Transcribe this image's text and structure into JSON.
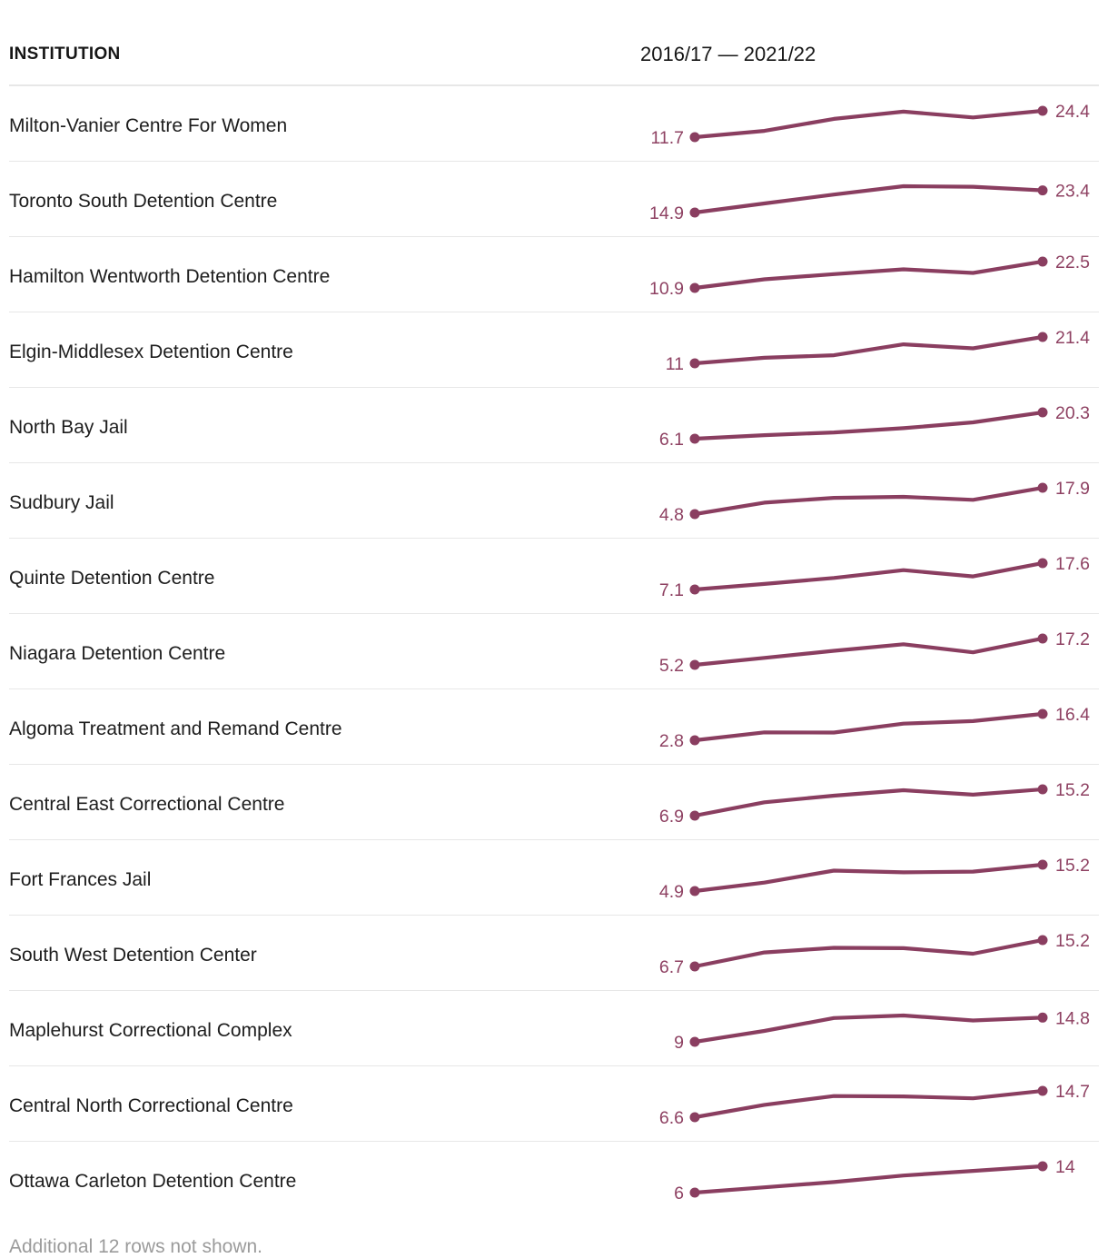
{
  "table": {
    "columns": [
      "INSTITUTION",
      "2016/17 — 2021/22"
    ]
  },
  "footer": {
    "note": "Additional 12 rows not shown."
  },
  "colors": {
    "accent": "#8a3e60",
    "value_label": "#8e4162",
    "row_text": "#1d1d1d",
    "separator": "#e7e7e7",
    "footer_text": "#9b9b9b"
  },
  "chart_data": {
    "type": "line",
    "period": "2016/17 — 2021/22",
    "note": "sparkline per table row; only first and last values are labeled, intermediate values estimated from line shape",
    "rows": [
      {
        "institution": "Milton-Vanier Centre For Women",
        "start_label": "11.7",
        "end_label": "24.4",
        "values": [
          11.7,
          14.7,
          20.5,
          24.0,
          21.2,
          24.4
        ]
      },
      {
        "institution": "Toronto South Detention Centre",
        "start_label": "14.9",
        "end_label": "23.4",
        "values": [
          14.9,
          18.4,
          21.8,
          25.0,
          24.8,
          23.4
        ]
      },
      {
        "institution": "Hamilton Wentworth Detention Centre",
        "start_label": "10.9",
        "end_label": "22.5",
        "values": [
          10.9,
          14.7,
          17.0,
          19.1,
          17.5,
          22.5
        ]
      },
      {
        "institution": "Elgin-Middlesex Detention Centre",
        "start_label": "11",
        "end_label": "21.4",
        "values": [
          11.0,
          13.2,
          14.2,
          18.5,
          16.9,
          21.4
        ]
      },
      {
        "institution": "North Bay Jail",
        "start_label": "6.1",
        "end_label": "20.3",
        "values": [
          6.1,
          8.0,
          9.5,
          11.8,
          14.9,
          20.3
        ]
      },
      {
        "institution": "Sudbury Jail",
        "start_label": "4.8",
        "end_label": "17.9",
        "values": [
          4.8,
          10.5,
          12.9,
          13.4,
          11.9,
          17.9
        ]
      },
      {
        "institution": "Quinte Detention Centre",
        "start_label": "7.1",
        "end_label": "17.6",
        "values": [
          7.1,
          9.3,
          11.7,
          14.8,
          12.3,
          17.6
        ]
      },
      {
        "institution": "Niagara Detention Centre",
        "start_label": "5.2",
        "end_label": "17.2",
        "values": [
          5.2,
          8.4,
          11.6,
          14.6,
          10.9,
          17.2
        ]
      },
      {
        "institution": "Algoma Treatment and Remand Centre",
        "start_label": "2.8",
        "end_label": "16.4",
        "values": [
          2.8,
          6.9,
          6.8,
          11.4,
          12.7,
          16.4
        ]
      },
      {
        "institution": "Central East Correctional Centre",
        "start_label": "6.9",
        "end_label": "15.2",
        "values": [
          6.9,
          11.1,
          13.2,
          14.9,
          13.5,
          15.2
        ]
      },
      {
        "institution": "Fort Frances Jail",
        "start_label": "4.9",
        "end_label": "15.2",
        "values": [
          4.9,
          8.2,
          12.9,
          12.2,
          12.5,
          15.2
        ]
      },
      {
        "institution": "South West Detention Center",
        "start_label": "6.7",
        "end_label": "15.2",
        "values": [
          6.7,
          11.2,
          12.7,
          12.6,
          10.8,
          15.2
        ]
      },
      {
        "institution": "Maplehurst Correctional Complex",
        "start_label": "9",
        "end_label": "14.8",
        "values": [
          9.0,
          11.6,
          14.7,
          15.3,
          14.1,
          14.8
        ]
      },
      {
        "institution": "Central North Correctional Centre",
        "start_label": "6.6",
        "end_label": "14.7",
        "values": [
          6.6,
          10.4,
          13.1,
          13.0,
          12.4,
          14.7
        ]
      },
      {
        "institution": "Ottawa Carleton Detention Centre",
        "start_label": "6",
        "end_label": "14",
        "values": [
          6.0,
          7.6,
          9.2,
          11.2,
          12.6,
          14.0
        ]
      }
    ]
  }
}
